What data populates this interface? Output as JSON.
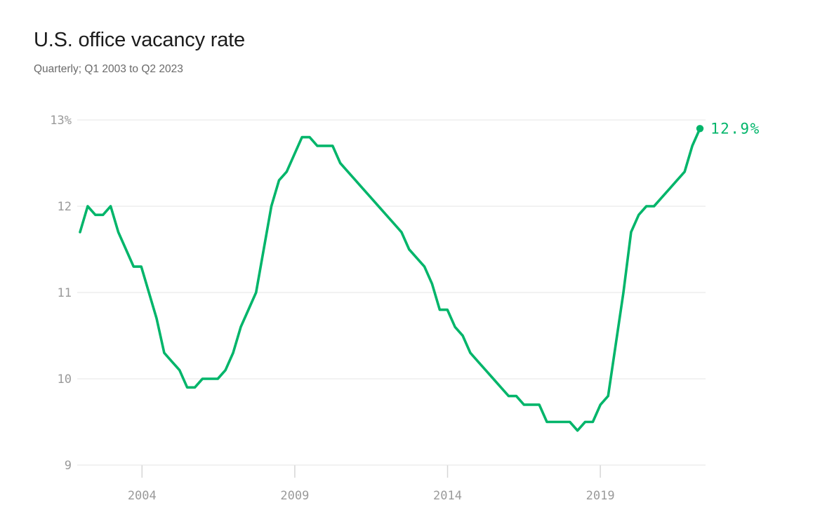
{
  "header": {
    "title": "U.S. office vacancy rate",
    "subtitle": "Quarterly; Q1 2003 to Q2 2023"
  },
  "chart_data": {
    "type": "line",
    "title": "U.S. office vacancy rate",
    "subtitle": "Quarterly; Q1 2003 to Q2 2023",
    "frequency": "quarterly",
    "x_start": "Q1 2003",
    "x_end": "Q2 2023",
    "unit": "percent",
    "ylim": [
      9,
      13
    ],
    "y_ticks": [
      13,
      12,
      11,
      10,
      9
    ],
    "y_tick_labels": [
      "13%",
      "12",
      "11",
      "10",
      "9"
    ],
    "x_tick_labels": [
      "2004",
      "2009",
      "2014",
      "2019"
    ],
    "grid": "horizontal",
    "legend": "none",
    "end_label": "12.9%",
    "end_value": 12.9,
    "series": [
      {
        "name": "U.S. office vacancy rate",
        "values": [
          11.7,
          12.0,
          11.9,
          11.9,
          12.0,
          11.7,
          11.5,
          11.3,
          11.3,
          11.0,
          10.7,
          10.3,
          10.2,
          10.1,
          9.9,
          9.9,
          10.0,
          10.0,
          10.0,
          10.1,
          10.3,
          10.6,
          10.8,
          11.0,
          11.5,
          12.0,
          12.3,
          12.4,
          12.6,
          12.8,
          12.8,
          12.7,
          12.7,
          12.7,
          12.5,
          12.4,
          12.3,
          12.2,
          12.1,
          12.0,
          11.9,
          11.8,
          11.7,
          11.5,
          11.4,
          11.3,
          11.1,
          10.8,
          10.8,
          10.6,
          10.5,
          10.3,
          10.2,
          10.1,
          10.0,
          9.9,
          9.8,
          9.8,
          9.7,
          9.7,
          9.7,
          9.5,
          9.5,
          9.5,
          9.5,
          9.4,
          9.5,
          9.5,
          9.7,
          9.8,
          10.4,
          11.0,
          11.7,
          11.9,
          12.0,
          12.0,
          12.1,
          12.2,
          12.3,
          12.4,
          12.7,
          12.9
        ]
      }
    ]
  },
  "colors": {
    "line": "#00b56a",
    "end_label": "#00b56a",
    "grid": "#e4e4e4",
    "tick": "#d6d6d6",
    "axis_label": "#9a9a9a",
    "title": "#1c1c1c",
    "subtitle": "#6a6a6a",
    "background": "#ffffff"
  }
}
